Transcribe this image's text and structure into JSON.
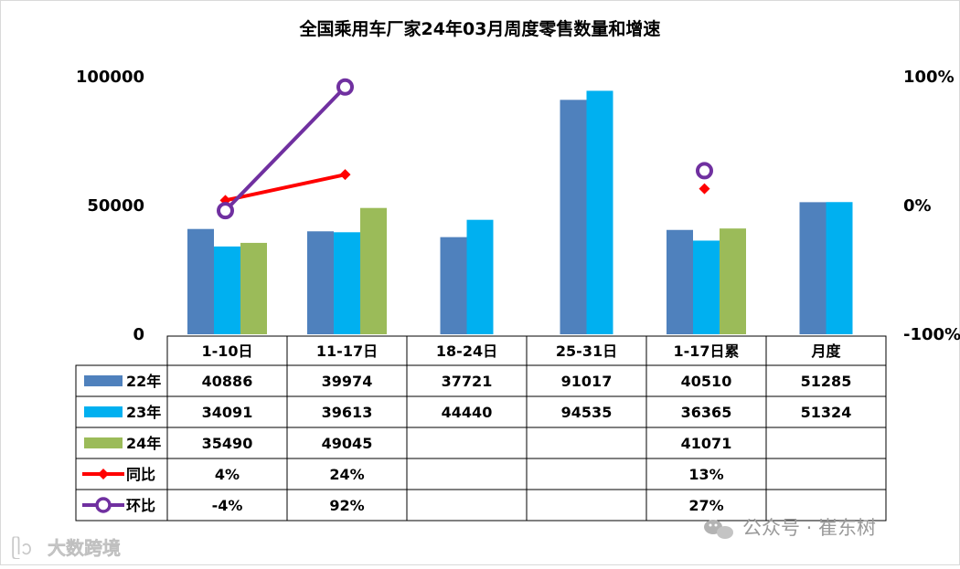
{
  "chart_data": {
    "type": "bar",
    "title": "全国乘用车厂家24年03月周度零售数量和增速",
    "categories": [
      "1-10日",
      "11-17日",
      "18-24日",
      "25-31日",
      "1-17日累",
      "月度"
    ],
    "left_axis_ticks": [
      "100000",
      "50000",
      "0"
    ],
    "right_axis_ticks": [
      "100%",
      "0%",
      "-100%"
    ],
    "ylim": [
      0,
      100000
    ],
    "y2lim": [
      -100,
      100
    ],
    "series": [
      {
        "name": "22年",
        "kind": "bar",
        "color": "#4f81bd",
        "values": [
          40886,
          39974,
          37721,
          91017,
          40510,
          51285
        ]
      },
      {
        "name": "23年",
        "kind": "bar",
        "color": "#00b0f0",
        "values": [
          34091,
          39613,
          44440,
          94535,
          36365,
          51324
        ]
      },
      {
        "name": "24年",
        "kind": "bar",
        "color": "#9bbb59",
        "values": [
          35490,
          49045,
          null,
          null,
          41071,
          null
        ]
      },
      {
        "name": "同比",
        "kind": "line",
        "color": "#ff0000",
        "values": [
          4,
          24,
          null,
          null,
          13,
          null
        ]
      },
      {
        "name": "环比",
        "kind": "line",
        "color": "#7030a0",
        "values": [
          -4,
          92,
          null,
          null,
          27,
          null
        ]
      }
    ],
    "table_text": {
      "22年": [
        "40886",
        "39974",
        "37721",
        "91017",
        "40510",
        "51285"
      ],
      "23年": [
        "34091",
        "39613",
        "44440",
        "94535",
        "36365",
        "51324"
      ],
      "24年": [
        "35490",
        "49045",
        "",
        "",
        "41071",
        ""
      ],
      "同比": [
        "4%",
        "24%",
        "",
        "",
        "13%",
        ""
      ],
      "环比": [
        "-4%",
        "92%",
        "",
        "",
        "27%",
        ""
      ]
    }
  },
  "watermark_left": "大数跨境",
  "watermark_right": "公众号 · 崔东树"
}
